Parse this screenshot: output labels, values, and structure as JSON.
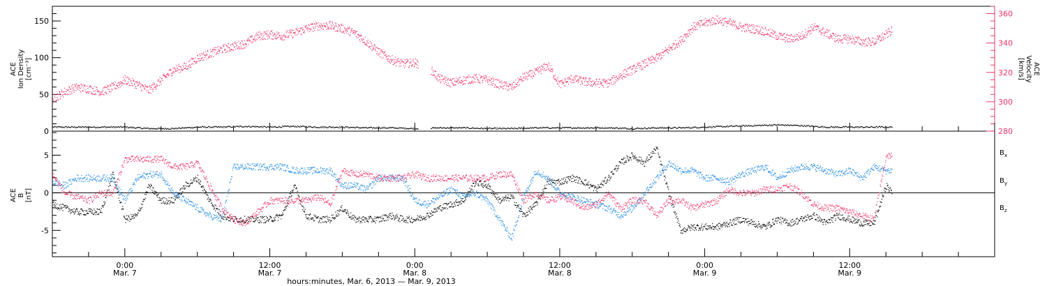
{
  "chart_data": [
    {
      "type": "scatter",
      "panel": "top",
      "ylabel_left": [
        "ACE",
        "Ion Density",
        "[cm⁻³]"
      ],
      "ylabel_right": [
        "ACE",
        "Velocity",
        "[km/s]"
      ],
      "ylim_left": [
        0,
        170
      ],
      "yticks_left": [
        0,
        50,
        100,
        150
      ],
      "ylim_right": [
        280,
        365
      ],
      "yticks_right": [
        280,
        300,
        320,
        340,
        360
      ],
      "right_axis_color": "#ee3366",
      "x_unit": "hours since 00:00 Mar. 6, 2013",
      "data_gaps_hours": [
        [
          48.3,
          49.3
        ]
      ],
      "series": [
        {
          "axis": "left",
          "color": "#000000",
          "x": [
            18,
            19,
            20,
            22,
            24,
            26,
            28,
            30,
            32,
            34,
            36,
            38,
            40,
            42,
            44,
            46,
            48,
            50,
            52,
            54,
            56,
            58,
            60,
            62,
            64,
            66,
            68,
            70,
            72,
            74,
            76,
            78,
            80,
            82,
            84,
            86,
            87.5
          ],
          "y": [
            6,
            6,
            6,
            6,
            6,
            4,
            4,
            6,
            6,
            7,
            6,
            7,
            6,
            6,
            5,
            5,
            4,
            5,
            5,
            4,
            4,
            5,
            5,
            5,
            5,
            4,
            5,
            5,
            6,
            7,
            8,
            9,
            8,
            6,
            6,
            6,
            6
          ]
        },
        {
          "axis": "right",
          "color": "#ee3366",
          "x": [
            18,
            19,
            20,
            21,
            22,
            23,
            24,
            25,
            26,
            27,
            28,
            29,
            30,
            31,
            32,
            33,
            34,
            35,
            36,
            37,
            38,
            39,
            40,
            41,
            42,
            43,
            44,
            45,
            46,
            47,
            48,
            48.3,
            49.3,
            50,
            51,
            52,
            53,
            54,
            55,
            56,
            57,
            58,
            59,
            60,
            61,
            62,
            63,
            64,
            65,
            66,
            67,
            68,
            69,
            70,
            71,
            72,
            73,
            74,
            75,
            76,
            77,
            78,
            79,
            80,
            81,
            82,
            83,
            84,
            85,
            86,
            87,
            87.5
          ],
          "y": [
            302,
            307,
            310,
            309,
            307,
            310,
            315,
            312,
            308,
            315,
            322,
            324,
            330,
            333,
            336,
            338,
            340,
            345,
            346,
            345,
            347,
            350,
            352,
            352,
            350,
            347,
            341,
            334,
            329,
            326,
            327,
            325,
            322,
            316,
            313,
            315,
            316,
            315,
            312,
            310,
            317,
            320,
            325,
            312,
            316,
            314,
            313,
            313,
            318,
            322,
            326,
            330,
            336,
            342,
            351,
            354,
            356,
            354,
            351,
            350,
            348,
            345,
            343,
            345,
            351,
            347,
            343,
            343,
            341,
            341,
            346,
            349
          ]
        }
      ]
    },
    {
      "type": "scatter",
      "panel": "bottom",
      "ylabel_left": [
        "ACE",
        "B",
        "[nT]"
      ],
      "ylim": [
        -8.5,
        8.2
      ],
      "yticks_left": [
        -5,
        0,
        5
      ],
      "zero_line": true,
      "x_unit": "hours since 00:00 Mar. 6, 2013",
      "series": [
        {
          "name": "B",
          "subscript": "x",
          "color": "#000000",
          "x": [
            18,
            19,
            20,
            21,
            22,
            23,
            24,
            25,
            26,
            27,
            28,
            29,
            30,
            31,
            32,
            33,
            34,
            35,
            36,
            37,
            38,
            39,
            40,
            41,
            42,
            43,
            44,
            45,
            46,
            47,
            48,
            49,
            50,
            51,
            52,
            53,
            54,
            55,
            56,
            57,
            58,
            59,
            60,
            61,
            62,
            63,
            64,
            65,
            66,
            67,
            68,
            69,
            70,
            71,
            72,
            73,
            74,
            75,
            76,
            77,
            78,
            79,
            80,
            81,
            82,
            83,
            84,
            85,
            86,
            87,
            87.5
          ],
          "y": [
            -1.5,
            -2,
            -2.5,
            -2.5,
            -2.5,
            2.5,
            -3.5,
            -3,
            1,
            -1,
            -1,
            1,
            2,
            -1,
            -3,
            -3.5,
            -3.5,
            -3.5,
            -3.5,
            -3,
            1,
            -3,
            -3.5,
            -3.5,
            -2,
            -3.5,
            -3.5,
            -3.5,
            -3,
            -3.5,
            -3.5,
            -3,
            -2,
            -1.5,
            -1,
            1.5,
            1,
            -1,
            -0.5,
            -3,
            -1.5,
            1.5,
            1.5,
            2,
            1.5,
            0.5,
            2,
            4,
            5,
            4,
            6,
            0,
            -5,
            -4.5,
            -4.5,
            -4.5,
            -4,
            -3.5,
            -4,
            -4.5,
            -3.5,
            -4,
            -3.5,
            -3,
            -4,
            -3,
            -3.5,
            -4,
            -4,
            1,
            0
          ]
        },
        {
          "name": "B",
          "subscript": "y",
          "color": "#1e88e5",
          "x": [
            18,
            19,
            20,
            21,
            22,
            23,
            24,
            25,
            26,
            27,
            28,
            29,
            30,
            31,
            32,
            33,
            34,
            35,
            36,
            37,
            38,
            39,
            40,
            41,
            42,
            43,
            44,
            45,
            46,
            47,
            48,
            49,
            50,
            51,
            52,
            53,
            54,
            55,
            56,
            57,
            58,
            59,
            60,
            61,
            62,
            63,
            64,
            65,
            66,
            67,
            68,
            69,
            70,
            71,
            72,
            73,
            74,
            75,
            76,
            77,
            78,
            79,
            80,
            81,
            82,
            83,
            84,
            85,
            86,
            87,
            87.5
          ],
          "y": [
            1.5,
            1,
            2,
            2,
            2,
            2,
            -1,
            2,
            2.5,
            2.5,
            0,
            -1,
            -2,
            -3,
            -3.5,
            3.5,
            3.5,
            3.5,
            3.5,
            3.5,
            3,
            3,
            3,
            3,
            1,
            1,
            0.5,
            2,
            2,
            2,
            -1,
            -1.5,
            -0.5,
            0.5,
            -0.5,
            0,
            -1,
            -3.5,
            -6,
            -0.5,
            3,
            2,
            0,
            -0.5,
            -1,
            -1.5,
            -2,
            -3,
            -2,
            0,
            2,
            4,
            3,
            3,
            2,
            2,
            1.5,
            2.5,
            3,
            3.5,
            2,
            3,
            3.5,
            3.5,
            3,
            2.5,
            3,
            2,
            3.5,
            3,
            3
          ]
        },
        {
          "name": "B",
          "subscript": "z",
          "color": "#ee3366",
          "x": [
            18,
            19,
            20,
            21,
            22,
            23,
            24,
            25,
            26,
            27,
            28,
            29,
            30,
            31,
            32,
            33,
            34,
            35,
            36,
            37,
            38,
            39,
            40,
            41,
            42,
            43,
            44,
            45,
            46,
            47,
            48,
            49,
            50,
            51,
            52,
            53,
            54,
            55,
            56,
            57,
            58,
            59,
            60,
            61,
            62,
            63,
            64,
            65,
            66,
            67,
            68,
            69,
            70,
            71,
            72,
            73,
            74,
            75,
            76,
            77,
            78,
            79,
            80,
            81,
            82,
            83,
            84,
            85,
            86,
            87,
            87.5
          ],
          "y": [
            2.5,
            0,
            -0.5,
            -1,
            0,
            0,
            4.5,
            4.5,
            4.5,
            4.5,
            3.5,
            3.5,
            4,
            1,
            -2,
            -3.5,
            -4,
            -2.5,
            -1,
            -1,
            -1,
            -1,
            -0.5,
            -1.5,
            3,
            2.5,
            2.5,
            2,
            2,
            2,
            2.5,
            2,
            2,
            2,
            2,
            2,
            2,
            2.5,
            2.5,
            -1,
            0,
            -1,
            -0.5,
            -1,
            -2,
            -1.5,
            0,
            -2,
            -1,
            -1,
            -3,
            -1,
            -1,
            -2,
            -1.5,
            -1,
            0.5,
            0,
            0,
            0.5,
            0.5,
            1,
            0,
            -1.5,
            -2,
            -2,
            -2.5,
            -3,
            -3.5,
            5,
            5
          ]
        }
      ]
    }
  ],
  "x_axis": {
    "range_hours": [
      18,
      96
    ],
    "tick_labels": [
      {
        "hours": 24,
        "time": "0:00",
        "date": "Mar. 7"
      },
      {
        "hours": 36,
        "time": "12:00",
        "date": "Mar. 7"
      },
      {
        "hours": 48,
        "time": "0:00",
        "date": "Mar. 8"
      },
      {
        "hours": 60,
        "time": "12:00",
        "date": "Mar. 8"
      },
      {
        "hours": 72,
        "time": "0:00",
        "date": "Mar. 9"
      },
      {
        "hours": 84,
        "time": "12:00",
        "date": "Mar. 9"
      }
    ],
    "label": "hours:minutes, Mar. 6, 2013 — Mar. 9, 2013"
  },
  "legend": {
    "items": [
      {
        "text": "B",
        "sub": "x",
        "color": "#000000"
      },
      {
        "text": "B",
        "sub": "y",
        "color": "#1e88e5"
      },
      {
        "text": "B",
        "sub": "z",
        "color": "#ee3366"
      }
    ]
  }
}
